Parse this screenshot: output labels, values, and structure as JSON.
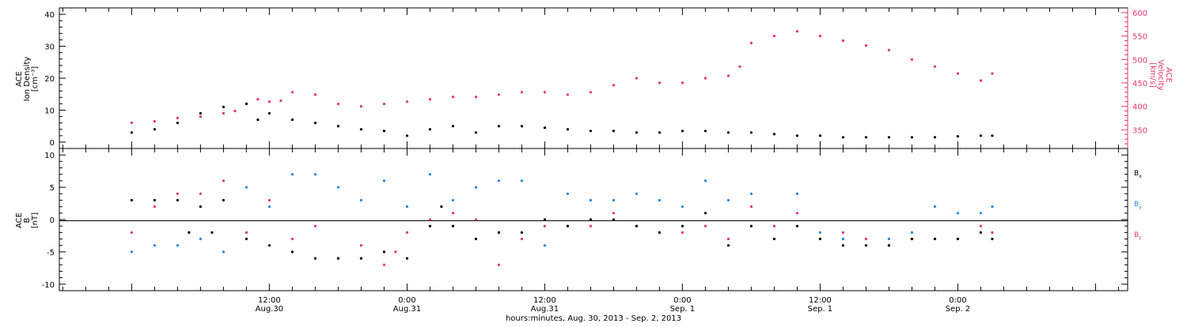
{
  "colors": {
    "black": "#000000",
    "pink": "#e8336b",
    "blue": "#1f86e8"
  },
  "xaxis": {
    "tick_labels": [
      {
        "t": 12,
        "l1": "12:00",
        "l2": "Aug.30"
      },
      {
        "t": 24,
        "l1": "0:00",
        "l2": "Aug.31"
      },
      {
        "t": 36,
        "l1": "12:00",
        "l2": "Aug.31"
      },
      {
        "t": 48,
        "l1": "0:00",
        "l2": "Sep. 1"
      },
      {
        "t": 60,
        "l1": "12:00",
        "l2": "Sep. 1"
      },
      {
        "t": 72,
        "l1": "0:00",
        "l2": "Sep. 2"
      }
    ],
    "title": "hours:minutes, Aug. 30, 2013 - Sep.  2, 2013"
  },
  "chart_data": [
    {
      "type": "scatter",
      "panel": "top",
      "ylabel_left": [
        "ACE",
        "Ion Density",
        "[cm⁻³]"
      ],
      "ylabel_right": [
        "ACE",
        "Velocity",
        "[km/s]"
      ],
      "ylim_left": [
        -2,
        42
      ],
      "yticks_left": [
        0,
        10,
        20,
        30,
        40
      ],
      "ylim_right": [
        310,
        610
      ],
      "yticks_right": [
        350,
        400,
        450,
        500,
        550,
        600
      ],
      "series": [
        {
          "name": "",
          "axis": "left",
          "color": "black",
          "x": [
            0,
            2,
            4,
            6,
            8,
            10,
            11,
            12,
            14,
            16,
            18,
            20,
            22,
            24,
            26,
            28,
            30,
            32,
            34,
            36,
            38,
            40,
            42,
            44,
            46,
            48,
            50,
            52,
            54,
            56,
            58,
            60,
            62,
            64,
            66,
            68,
            70,
            72,
            74,
            75
          ],
          "y": [
            3,
            4,
            6,
            9,
            11,
            12,
            7,
            9,
            7,
            6,
            5,
            4,
            3.5,
            2,
            4,
            5,
            3,
            5,
            5,
            4.5,
            4,
            3.5,
            3.5,
            3,
            3,
            3.5,
            3.5,
            3,
            3,
            2.5,
            2,
            2,
            1.5,
            1.5,
            1.5,
            1.5,
            1.5,
            1.8,
            2,
            2
          ]
        },
        {
          "name": "",
          "axis": "right",
          "color": "pink",
          "x": [
            0,
            2,
            4,
            6,
            8,
            9,
            10,
            11,
            12,
            13,
            14,
            16,
            18,
            20,
            22,
            24,
            26,
            28,
            30,
            32,
            34,
            36,
            38,
            40,
            42,
            44,
            46,
            48,
            50,
            52,
            53,
            54,
            56,
            58,
            60,
            62,
            64,
            66,
            68,
            70,
            72,
            74,
            75
          ],
          "y": [
            365,
            368,
            375,
            378,
            385,
            390,
            405,
            415,
            410,
            412,
            430,
            425,
            405,
            400,
            405,
            410,
            415,
            420,
            420,
            425,
            430,
            430,
            425,
            430,
            445,
            460,
            450,
            450,
            460,
            465,
            485,
            535,
            550,
            560,
            550,
            540,
            530,
            520,
            500,
            485,
            470,
            455,
            470
          ]
        }
      ]
    },
    {
      "type": "scatter",
      "panel": "bottom",
      "ylabel_left": [
        "ACE",
        "B",
        "[nT]"
      ],
      "ylim": [
        -11,
        11
      ],
      "yticks": [
        -10,
        -5,
        0,
        5,
        10
      ],
      "legend": [
        "B",
        "B",
        "B"
      ],
      "legend_sub": [
        "x",
        "y",
        "z"
      ],
      "series": [
        {
          "name": "Bx",
          "color": "black",
          "x": [
            0,
            2,
            4,
            5,
            6,
            7,
            8,
            10,
            12,
            14,
            16,
            18,
            20,
            22,
            24,
            26,
            27,
            28,
            30,
            32,
            34,
            36,
            38,
            40,
            42,
            44,
            46,
            48,
            50,
            52,
            54,
            56,
            58,
            60,
            62,
            64,
            66,
            68,
            70,
            72,
            74,
            75
          ],
          "y": [
            3,
            3,
            3,
            -2,
            2,
            -2,
            3,
            -3,
            -4,
            -5,
            -6,
            -6,
            -6,
            -5,
            -6,
            -1,
            2,
            -1,
            -3,
            -2,
            -2,
            0,
            -1,
            0,
            0,
            -1,
            -2,
            -1,
            1,
            -4,
            -1,
            -3,
            -1,
            -3,
            -4,
            -4,
            -4,
            -3,
            -3,
            -3,
            -2,
            -3
          ]
        },
        {
          "name": "By",
          "color": "blue",
          "x": [
            0,
            2,
            4,
            5,
            6,
            8,
            10,
            12,
            14,
            16,
            18,
            20,
            22,
            24,
            26,
            28,
            30,
            32,
            34,
            36,
            38,
            40,
            42,
            44,
            46,
            48,
            50,
            52,
            54,
            56,
            58,
            60,
            62,
            64,
            66,
            68,
            70,
            72,
            74,
            75
          ],
          "y": [
            -5,
            -4,
            -4,
            -2,
            -3,
            -5,
            5,
            2,
            7,
            7,
            5,
            3,
            6,
            2,
            7,
            3,
            5,
            6,
            6,
            -4,
            4,
            3,
            3,
            4,
            3,
            2,
            6,
            3,
            4,
            -1,
            4,
            -2,
            -3,
            -3,
            -3,
            -2,
            2,
            1,
            1,
            2
          ]
        },
        {
          "name": "Bz",
          "color": "pink",
          "x": [
            0,
            2,
            4,
            6,
            8,
            10,
            12,
            14,
            16,
            18,
            20,
            22,
            23,
            24,
            26,
            28,
            30,
            32,
            34,
            36,
            38,
            40,
            42,
            44,
            46,
            48,
            50,
            52,
            54,
            56,
            58,
            60,
            62,
            64,
            66,
            68,
            70,
            72,
            74,
            75
          ],
          "y": [
            -2,
            2,
            4,
            4,
            6,
            -2,
            3,
            -3,
            -1,
            -6,
            -4,
            -7,
            -5,
            -2,
            0,
            1,
            0,
            -7,
            -3,
            -1,
            -1,
            -1,
            1,
            -1,
            -2,
            -2,
            -1,
            -3,
            2,
            -1,
            1,
            -3,
            -2,
            -3,
            -4,
            -3,
            -3,
            -3,
            -1,
            -2
          ]
        }
      ]
    }
  ]
}
